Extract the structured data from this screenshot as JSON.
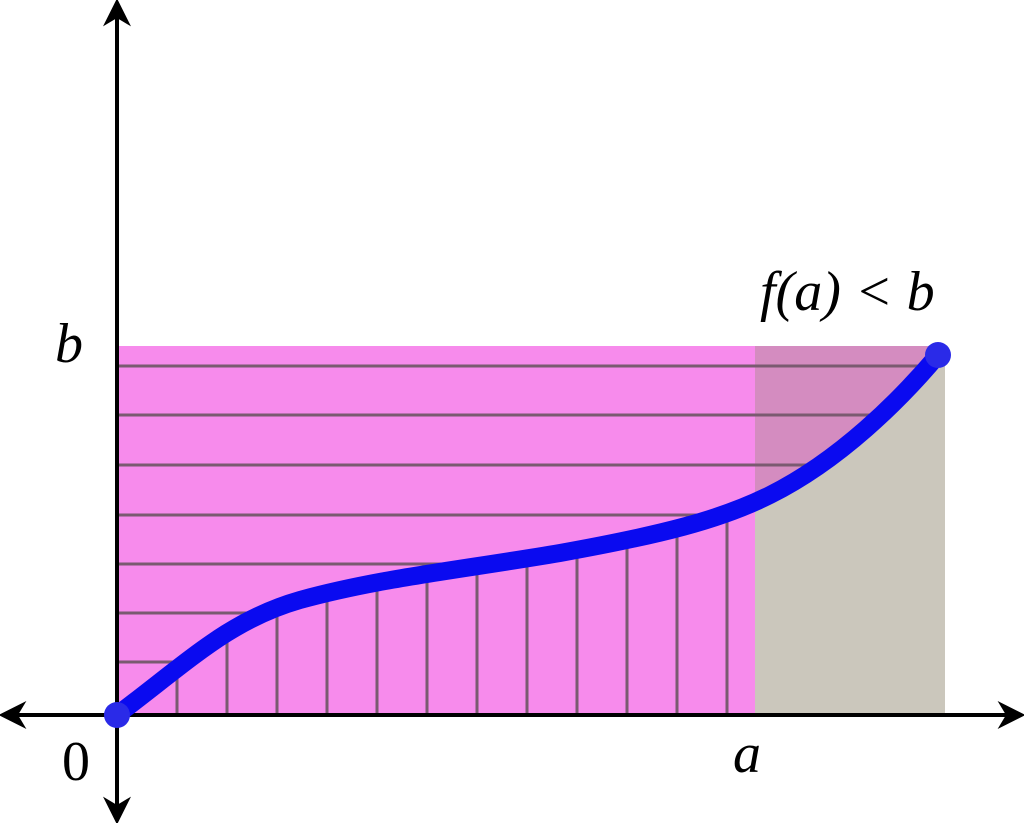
{
  "labels": {
    "y_point": "b",
    "origin": "0",
    "x_point": "a",
    "annotation": "f(a) < b"
  }
}
